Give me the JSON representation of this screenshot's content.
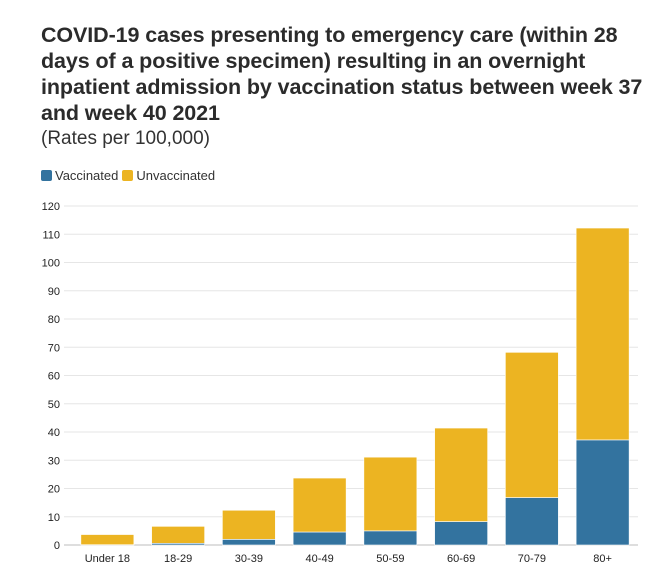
{
  "chart_data": {
    "type": "bar",
    "stacked": true,
    "title": "COVID-19 cases presenting to emergency care (within 28 days of a positive specimen) resulting in an overnight inpatient admission by vaccination status between week 37 and week 40 2021",
    "subtitle": "(Rates per 100,000)",
    "xlabel": "",
    "ylabel": "",
    "categories": [
      "Under 18",
      "18-29",
      "30-39",
      "40-49",
      "50-59",
      "60-69",
      "70-79",
      "80+"
    ],
    "series": [
      {
        "name": "Vaccinated",
        "color": "#33739f",
        "values": [
          0.1,
          0.6,
          2.0,
          4.6,
          5.0,
          8.3,
          16.8,
          37.2
        ]
      },
      {
        "name": "Unvaccinated",
        "color": "#ecb422",
        "values": [
          3.6,
          6.0,
          10.3,
          19.1,
          26.1,
          33.1,
          51.4,
          75.0
        ]
      }
    ],
    "ylim": [
      0,
      120
    ],
    "yticks": [
      0,
      10,
      20,
      30,
      40,
      50,
      60,
      70,
      80,
      90,
      100,
      110,
      120
    ],
    "grid": true,
    "legend_position": "top-left"
  }
}
